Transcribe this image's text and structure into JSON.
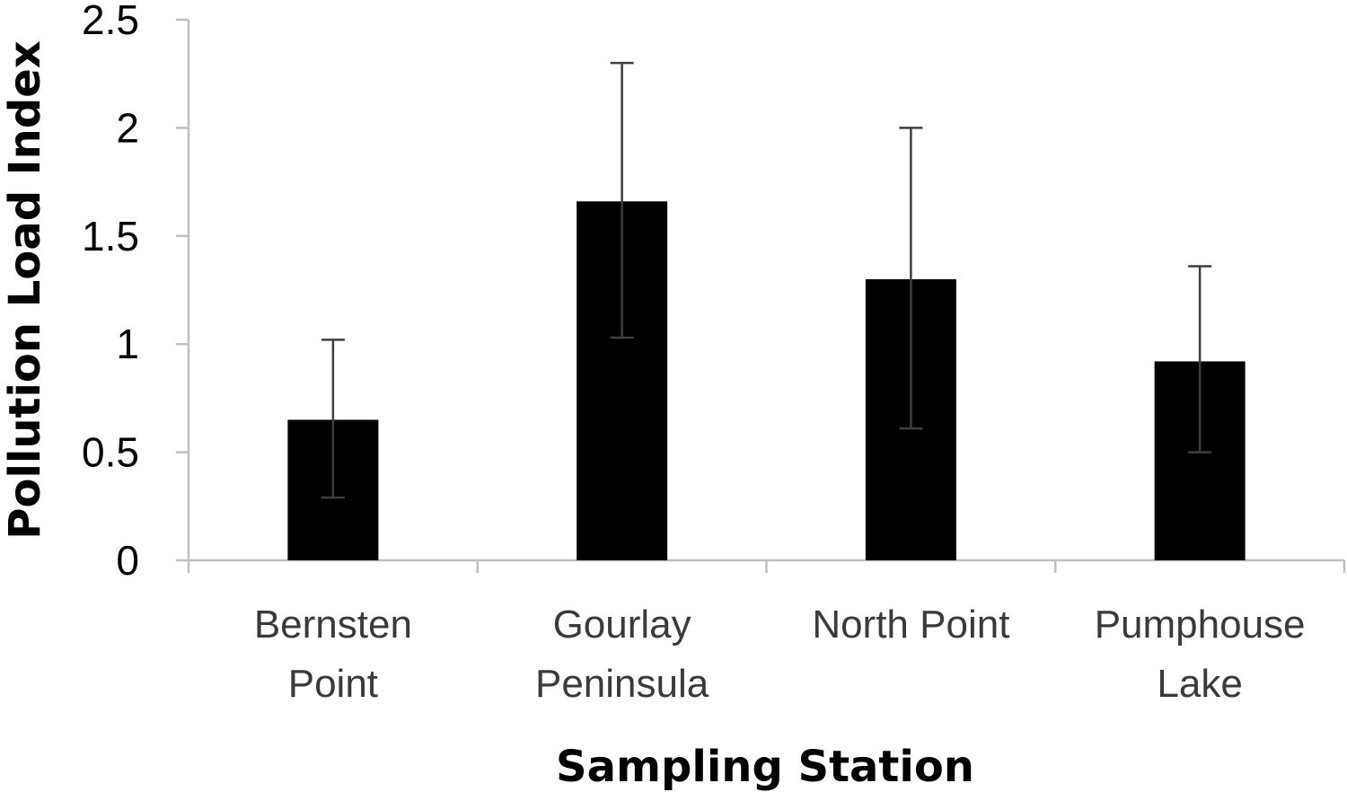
{
  "chart_data": {
    "type": "bar",
    "xlabel": "Sampling Station",
    "ylabel": "Pollution Load Index",
    "categories": [
      [
        "Bernsten",
        "Point"
      ],
      [
        "Gourlay",
        "Peninsula"
      ],
      [
        "North Point"
      ],
      [
        "Pumphouse",
        "Lake"
      ]
    ],
    "values": [
      0.65,
      1.66,
      1.3,
      0.92
    ],
    "error_upper": [
      1.02,
      2.3,
      2.0,
      1.36
    ],
    "error_lower": [
      0.29,
      1.03,
      0.61,
      0.5
    ],
    "ylim": [
      0,
      2.5
    ],
    "yticks": [
      "0",
      "0.5",
      "1",
      "1.5",
      "2",
      "2.5"
    ],
    "grid": false,
    "legend": "none",
    "bar_color": "#000000",
    "axis_color": "#bfbfbf",
    "error_bar_color": "#3f3f3f"
  }
}
